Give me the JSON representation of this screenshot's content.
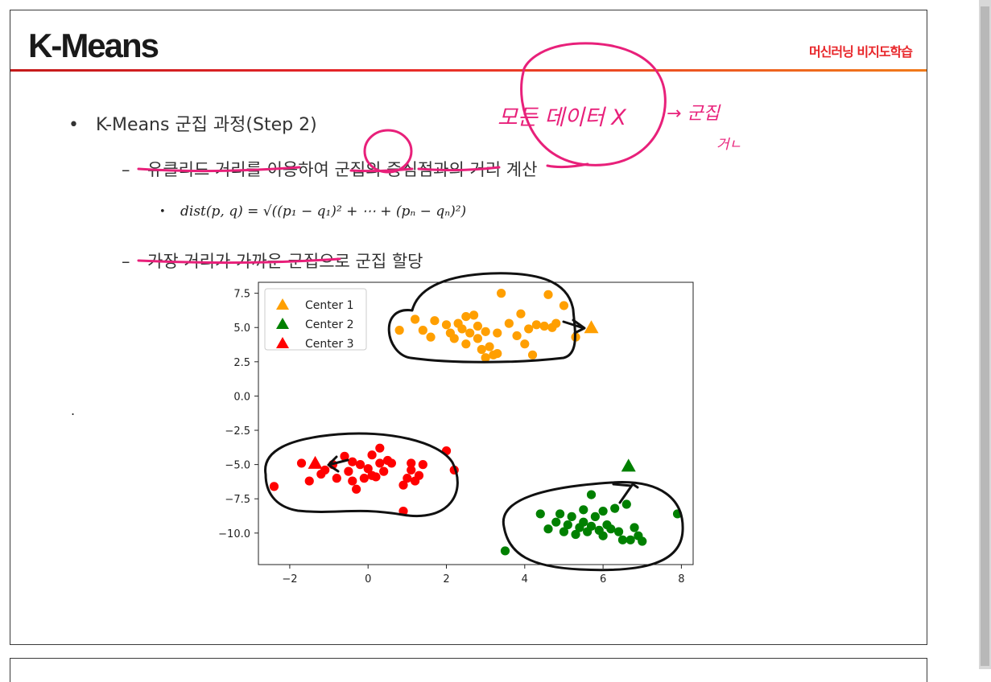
{
  "slide": {
    "title": "K-Means",
    "tag": "머신러닝 비지도학습",
    "bullet": "•",
    "dash": "–",
    "line1": "K-Means 군집 과정(Step 2)",
    "line2": "유클리드 거리를 이용하여 군집의 중심점과의 거리 계산",
    "formula_bullet": "•",
    "formula": "dist(p, q) = √((p₁ − q₁)² + ⋯ + (pₙ − qₙ)²)",
    "line3": "가장 거리가 가까운 군집으로 군집 할당",
    "stray_dot": "."
  },
  "annotations": {
    "note1": "모든 데이터 X",
    "note2": "→ 군집",
    "note3": "거ㄴ"
  },
  "colors": {
    "center1": "#ff9f00",
    "center2": "#008000",
    "center3": "#ff0000",
    "accent": "#e8262a",
    "ink_pink": "#e8207a"
  },
  "chart_data": {
    "type": "scatter",
    "xlim": [
      -2.8,
      8.3
    ],
    "ylim": [
      -12.3,
      8.3
    ],
    "xticks": [
      "−2",
      "0",
      "2",
      "4",
      "6",
      "8"
    ],
    "xtick_values": [
      -2,
      0,
      2,
      4,
      6,
      8
    ],
    "yticks": [
      "7.5",
      "5.0",
      "2.5",
      "0.0",
      "−2.5",
      "−5.0",
      "−7.5",
      "−10.0"
    ],
    "ytick_values": [
      7.5,
      5.0,
      2.5,
      0.0,
      -2.5,
      -5.0,
      -7.5,
      -10.0
    ],
    "legend_position": "top-left",
    "series": [
      {
        "name": "Center 1",
        "color": "#ff9f00",
        "center": [
          5.7,
          5.0
        ],
        "points": [
          [
            0.8,
            4.8
          ],
          [
            1.2,
            5.6
          ],
          [
            1.4,
            4.8
          ],
          [
            1.6,
            4.3
          ],
          [
            1.7,
            5.5
          ],
          [
            2.0,
            5.2
          ],
          [
            2.1,
            4.6
          ],
          [
            2.2,
            4.2
          ],
          [
            2.3,
            5.3
          ],
          [
            2.4,
            4.9
          ],
          [
            2.5,
            5.8
          ],
          [
            2.5,
            3.8
          ],
          [
            2.6,
            4.6
          ],
          [
            2.7,
            5.9
          ],
          [
            2.8,
            5.1
          ],
          [
            2.8,
            4.2
          ],
          [
            2.9,
            3.4
          ],
          [
            3.0,
            4.7
          ],
          [
            3.0,
            2.8
          ],
          [
            3.1,
            3.6
          ],
          [
            3.2,
            3.0
          ],
          [
            3.3,
            3.1
          ],
          [
            3.3,
            4.6
          ],
          [
            3.4,
            7.5
          ],
          [
            3.6,
            5.3
          ],
          [
            3.8,
            4.4
          ],
          [
            3.9,
            6.0
          ],
          [
            4.0,
            3.8
          ],
          [
            4.1,
            4.9
          ],
          [
            4.2,
            3.0
          ],
          [
            4.3,
            5.2
          ],
          [
            4.5,
            5.1
          ],
          [
            4.6,
            7.4
          ],
          [
            4.7,
            5.0
          ],
          [
            4.8,
            5.3
          ],
          [
            5.0,
            6.6
          ],
          [
            5.3,
            4.3
          ]
        ]
      },
      {
        "name": "Center 2",
        "color": "#008000",
        "center": [
          6.65,
          -5.1
        ],
        "points": [
          [
            3.5,
            -11.3
          ],
          [
            4.4,
            -8.6
          ],
          [
            4.6,
            -9.7
          ],
          [
            4.8,
            -9.2
          ],
          [
            4.9,
            -8.6
          ],
          [
            5.0,
            -9.9
          ],
          [
            5.1,
            -9.4
          ],
          [
            5.2,
            -8.8
          ],
          [
            5.3,
            -10.1
          ],
          [
            5.4,
            -9.6
          ],
          [
            5.5,
            -9.2
          ],
          [
            5.5,
            -8.3
          ],
          [
            5.6,
            -9.9
          ],
          [
            5.7,
            -7.2
          ],
          [
            5.7,
            -9.5
          ],
          [
            5.8,
            -8.8
          ],
          [
            5.9,
            -9.8
          ],
          [
            6.0,
            -8.4
          ],
          [
            6.0,
            -10.2
          ],
          [
            6.1,
            -9.4
          ],
          [
            6.2,
            -9.7
          ],
          [
            6.3,
            -8.2
          ],
          [
            6.4,
            -9.9
          ],
          [
            6.5,
            -10.5
          ],
          [
            6.6,
            -7.9
          ],
          [
            6.7,
            -10.5
          ],
          [
            6.8,
            -9.6
          ],
          [
            6.9,
            -10.2
          ],
          [
            7.0,
            -10.6
          ],
          [
            7.9,
            -8.6
          ]
        ]
      },
      {
        "name": "Center 3",
        "color": "#ff0000",
        "center": [
          -1.35,
          -4.9
        ],
        "points": [
          [
            -2.4,
            -6.6
          ],
          [
            -1.7,
            -4.9
          ],
          [
            -1.5,
            -6.2
          ],
          [
            -1.2,
            -5.7
          ],
          [
            -1.1,
            -5.4
          ],
          [
            -0.9,
            -5.0
          ],
          [
            -0.8,
            -6.0
          ],
          [
            -0.6,
            -4.4
          ],
          [
            -0.5,
            -5.5
          ],
          [
            -0.4,
            -4.8
          ],
          [
            -0.4,
            -6.2
          ],
          [
            -0.3,
            -6.8
          ],
          [
            -0.2,
            -5.0
          ],
          [
            -0.1,
            -6.0
          ],
          [
            0.0,
            -5.3
          ],
          [
            0.1,
            -4.3
          ],
          [
            0.1,
            -5.8
          ],
          [
            0.2,
            -5.9
          ],
          [
            0.3,
            -4.9
          ],
          [
            0.3,
            -3.8
          ],
          [
            0.4,
            -5.5
          ],
          [
            0.5,
            -4.7
          ],
          [
            0.6,
            -4.9
          ],
          [
            0.9,
            -6.5
          ],
          [
            1.0,
            -6.0
          ],
          [
            1.1,
            -5.4
          ],
          [
            1.1,
            -4.9
          ],
          [
            1.2,
            -6.2
          ],
          [
            1.3,
            -5.8
          ],
          [
            1.4,
            -5.0
          ],
          [
            2.0,
            -4.0
          ],
          [
            2.2,
            -5.4
          ],
          [
            0.9,
            -8.4
          ]
        ]
      }
    ]
  }
}
